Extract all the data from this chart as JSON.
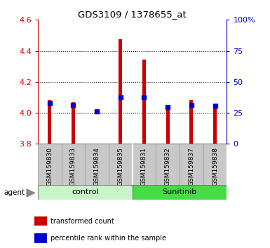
{
  "title": "GDS3109 / 1378655_at",
  "samples": [
    "GSM159830",
    "GSM159833",
    "GSM159834",
    "GSM159835",
    "GSM159831",
    "GSM159832",
    "GSM159837",
    "GSM159838"
  ],
  "red_bottom": [
    3.8,
    3.8,
    3.78,
    3.8,
    3.8,
    3.8,
    3.8,
    3.8
  ],
  "red_top": [
    4.08,
    4.07,
    3.787,
    4.475,
    4.345,
    4.02,
    4.08,
    4.04
  ],
  "blue_values": [
    4.063,
    4.048,
    4.01,
    4.1,
    4.1,
    4.035,
    4.048,
    4.046
  ],
  "groups": [
    {
      "label": "control",
      "start": 0,
      "end": 4,
      "color": "#c8f5c8"
    },
    {
      "label": "Sunitinib",
      "start": 4,
      "end": 8,
      "color": "#44dd44"
    }
  ],
  "ylim_left": [
    3.8,
    4.6
  ],
  "ylim_right": [
    0,
    100
  ],
  "yticks_left": [
    3.8,
    4.0,
    4.2,
    4.4,
    4.6
  ],
  "yticks_right": [
    0,
    25,
    50,
    75,
    100
  ],
  "ytick_labels_right": [
    "0",
    "25",
    "50",
    "75",
    "100%"
  ],
  "bar_color": "#cc0000",
  "dot_color": "#0000cc",
  "label_color_left": "#cc0000",
  "label_color_right": "#0000cc",
  "agent_label": "agent",
  "legend_red": "transformed count",
  "legend_blue": "percentile rank within the sample",
  "xticklabel_bg": "#c8c8c8",
  "bar_width": 0.15
}
